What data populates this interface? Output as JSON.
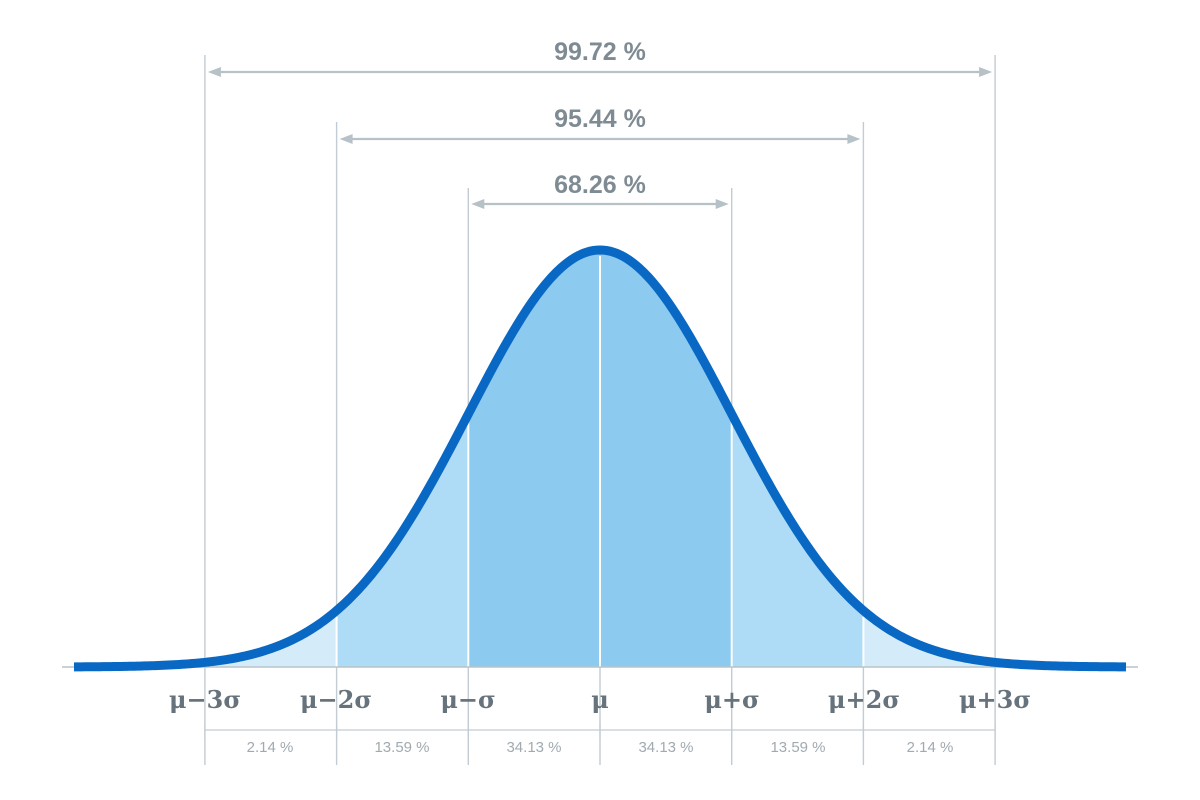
{
  "diagram": {
    "sigma_labels": [
      "μ−3σ",
      "μ−2σ",
      "μ−σ",
      "μ",
      "μ+σ",
      "μ+2σ",
      "μ+3σ"
    ],
    "ranges": [
      {
        "label": "99.72 %",
        "from_sigma": -3,
        "to_sigma": 3
      },
      {
        "label": "95.44 %",
        "from_sigma": -2,
        "to_sigma": 2
      },
      {
        "label": "68.26 %",
        "from_sigma": -1,
        "to_sigma": 1
      }
    ],
    "bands": [
      {
        "from_sigma": -3,
        "to_sigma": -2,
        "label": "2.14 %"
      },
      {
        "from_sigma": -2,
        "to_sigma": -1,
        "label": "13.59 %"
      },
      {
        "from_sigma": -1,
        "to_sigma": 0,
        "label": "34.13 %"
      },
      {
        "from_sigma": 0,
        "to_sigma": 1,
        "label": "34.13 %"
      },
      {
        "from_sigma": 1,
        "to_sigma": 2,
        "label": "13.59 %"
      },
      {
        "from_sigma": 2,
        "to_sigma": 3,
        "label": "2.14 %"
      }
    ],
    "colors": {
      "curve": "#0968c3",
      "band_1sigma": "#8ccbef",
      "band_2sigma": "#aedcf6",
      "band_3sigma": "#d4ecfa",
      "guide": "#c3ccd2",
      "text": "#7f8b93"
    }
  }
}
